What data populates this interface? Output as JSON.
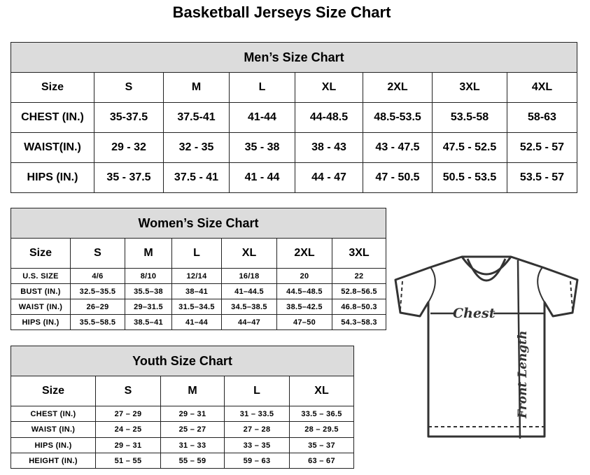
{
  "title": "Basketball Jerseys Size Chart",
  "men": {
    "caption": "Men’s Size Chart",
    "header": [
      "Size",
      "S",
      "M",
      "L",
      "XL",
      "2XL",
      "3XL",
      "4XL"
    ],
    "rows": [
      [
        "CHEST (IN.)",
        "35-37.5",
        "37.5-41",
        "41-44",
        "44-48.5",
        "48.5-53.5",
        "53.5-58",
        "58-63"
      ],
      [
        "WAIST(IN.)",
        "29 - 32",
        "32 - 35",
        "35 - 38",
        "38 - 43",
        "43 - 47.5",
        "47.5 - 52.5",
        "52.5 - 57"
      ],
      [
        "HIPS (IN.)",
        "35 - 37.5",
        "37.5 - 41",
        "41 - 44",
        "44 - 47",
        "47 - 50.5",
        "50.5 - 53.5",
        "53.5 - 57"
      ]
    ]
  },
  "women": {
    "caption": "Women’s Size Chart",
    "header": [
      "Size",
      "S",
      "M",
      "L",
      "XL",
      "2XL",
      "3XL"
    ],
    "rows": [
      [
        "U.S.  SIZE",
        "4/6",
        "8/10",
        "12/14",
        "16/18",
        "20",
        "22"
      ],
      [
        "BUST  (IN.)",
        "32.5–35.5",
        "35.5–38",
        "38–41",
        "41–44.5",
        "44.5–48.5",
        "52.8–56.5"
      ],
      [
        "WAIST  (IN.)",
        "26–29",
        "29–31.5",
        "31.5–34.5",
        "34.5–38.5",
        "38.5–42.5",
        "46.8–50.3"
      ],
      [
        "HIPS  (IN.)",
        "35.5–58.5",
        "38.5–41",
        "41–44",
        "44–47",
        "47–50",
        "54.3–58.3"
      ]
    ]
  },
  "youth": {
    "caption": "Youth Size Chart",
    "header": [
      "Size",
      "S",
      "M",
      "L",
      "XL"
    ],
    "rows": [
      [
        "CHEST  (IN.)",
        "27  –  29",
        "29  –  31",
        "31  –  33.5",
        "33.5  –  36.5"
      ],
      [
        "WAIST  (IN.)",
        "24  –  25",
        "25  –  27",
        "27  –  28",
        "28  –  29.5"
      ],
      [
        "HIPS  (IN.)",
        "29  –  31",
        "31  –  33",
        "33  –  35",
        "35  –  37"
      ],
      [
        "HEIGHT  (IN.)",
        "51  –  55",
        "55  –  59",
        "59  –  63",
        "63  –  67"
      ]
    ]
  },
  "diagram": {
    "chest_label": "Chest",
    "length_label": "Front Length",
    "icon": "t-shirt-icon"
  }
}
